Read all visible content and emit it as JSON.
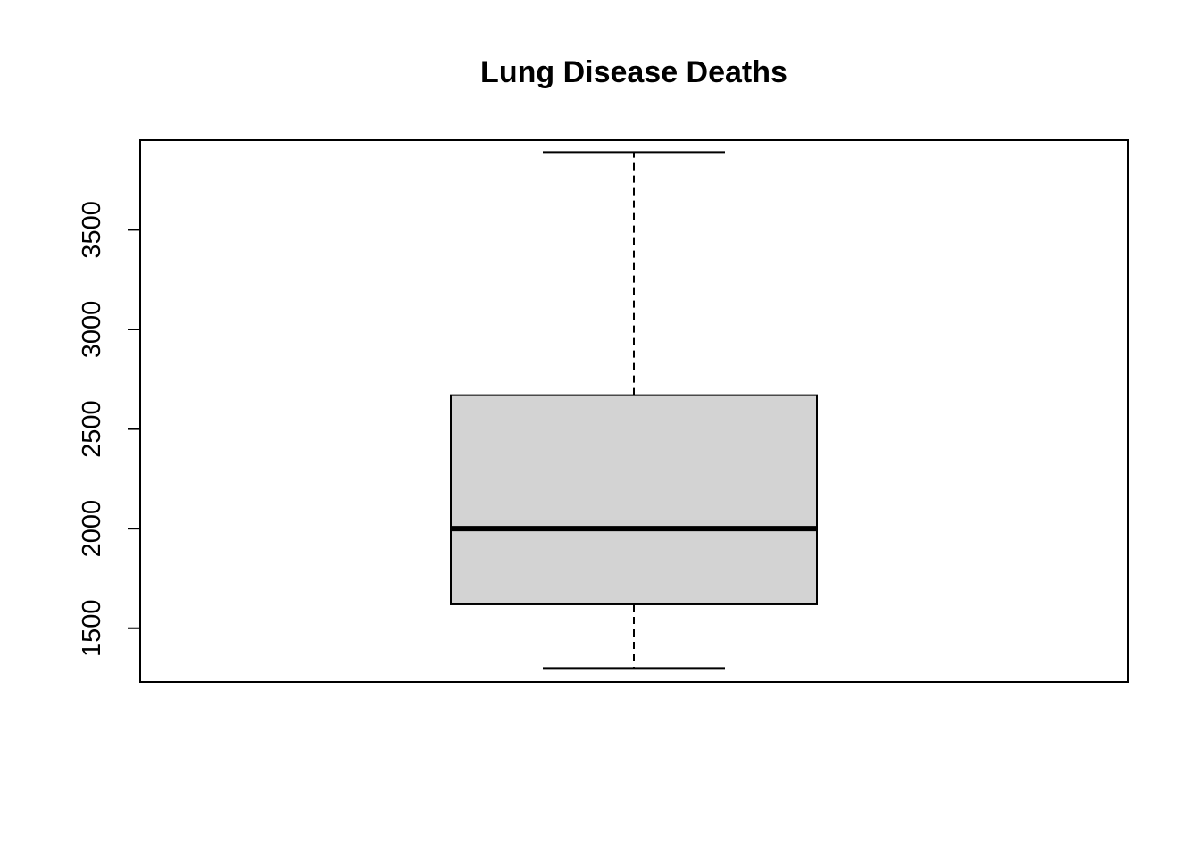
{
  "chart_data": {
    "type": "box",
    "title": "Lung Disease Deaths",
    "xlabel": "",
    "ylabel": "",
    "ylim": [
      1230,
      3950
    ],
    "yticks": [
      1500,
      2000,
      2500,
      3000,
      3500
    ],
    "ytick_labels": [
      "1500",
      "2000",
      "2500",
      "3000",
      "3500"
    ],
    "grid": false,
    "box": {
      "min": 1300,
      "q1": 1620,
      "median": 2000,
      "q3": 2670,
      "max": 3890
    },
    "colors": {
      "box_fill": "#d3d3d3",
      "stroke": "#000000"
    }
  }
}
